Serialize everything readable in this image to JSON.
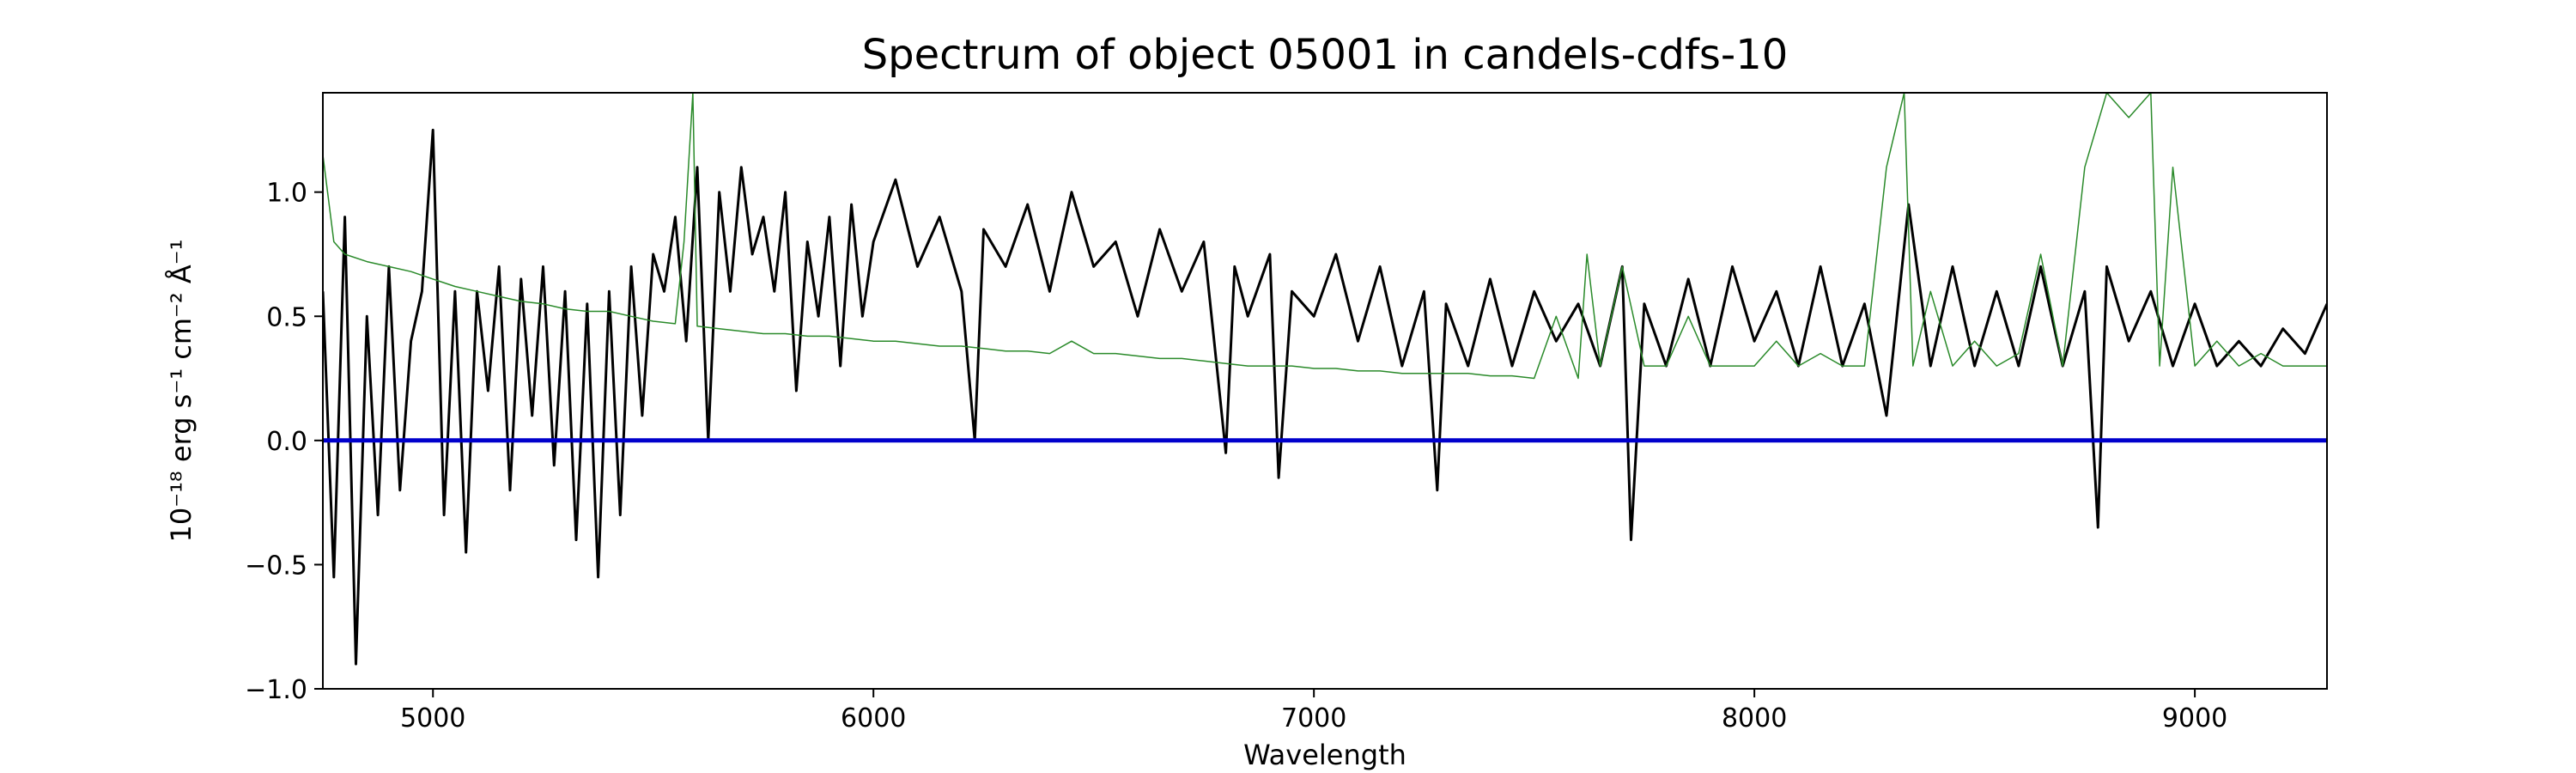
{
  "chart_data": {
    "type": "line",
    "title": "Spectrum of object 05001 in candels-cdfs-10",
    "xlabel": "Wavelength",
    "ylabel": "10⁻¹⁸ erg s⁻¹ cm⁻² Å⁻¹",
    "xlim": [
      4750,
      9300
    ],
    "ylim": [
      -1.0,
      1.4
    ],
    "x_ticks": [
      5000,
      6000,
      7000,
      8000,
      9000
    ],
    "y_ticks": [
      -1.0,
      -0.5,
      0.0,
      0.5,
      1.0
    ],
    "x_tick_labels": [
      "5000",
      "6000",
      "7000",
      "8000",
      "9000"
    ],
    "y_tick_labels": [
      "−1.0",
      "−0.5",
      "0.0",
      "0.5",
      "1.0"
    ],
    "grid": false,
    "series": [
      {
        "color": "#000000",
        "x": [
          4750,
          4775,
          4800,
          4825,
          4850,
          4875,
          4900,
          4925,
          4950,
          4975,
          5000,
          5025,
          5050,
          5075,
          5100,
          5125,
          5150,
          5175,
          5200,
          5225,
          5250,
          5275,
          5300,
          5325,
          5350,
          5375,
          5400,
          5425,
          5450,
          5475,
          5500,
          5525,
          5550,
          5575,
          5600,
          5625,
          5650,
          5675,
          5700,
          5725,
          5750,
          5775,
          5800,
          5825,
          5850,
          5875,
          5900,
          5925,
          5950,
          5975,
          6000,
          6050,
          6100,
          6150,
          6200,
          6230,
          6250,
          6300,
          6350,
          6400,
          6450,
          6500,
          6550,
          6600,
          6650,
          6700,
          6750,
          6800,
          6820,
          6850,
          6900,
          6920,
          6950,
          7000,
          7050,
          7100,
          7150,
          7200,
          7250,
          7280,
          7300,
          7350,
          7400,
          7450,
          7500,
          7550,
          7600,
          7650,
          7700,
          7720,
          7750,
          7800,
          7850,
          7900,
          7950,
          8000,
          8050,
          8100,
          8150,
          8200,
          8250,
          8300,
          8350,
          8400,
          8450,
          8500,
          8550,
          8600,
          8650,
          8700,
          8750,
          8780,
          8800,
          8850,
          8900,
          8950,
          9000,
          9050,
          9100,
          9150,
          9200,
          9250,
          9300
        ],
        "y": [
          0.6,
          -0.55,
          0.9,
          -0.9,
          0.5,
          -0.3,
          0.7,
          -0.2,
          0.4,
          0.6,
          1.25,
          -0.3,
          0.6,
          -0.45,
          0.6,
          0.2,
          0.7,
          -0.2,
          0.65,
          0.1,
          0.7,
          -0.1,
          0.6,
          -0.4,
          0.55,
          -0.55,
          0.6,
          -0.3,
          0.7,
          0.1,
          0.75,
          0.6,
          0.9,
          0.4,
          1.1,
          0.0,
          1.0,
          0.6,
          1.1,
          0.75,
          0.9,
          0.6,
          1.0,
          0.2,
          0.8,
          0.5,
          0.9,
          0.3,
          0.95,
          0.5,
          0.8,
          1.05,
          0.7,
          0.9,
          0.6,
          0.0,
          0.85,
          0.7,
          0.95,
          0.6,
          1.0,
          0.7,
          0.8,
          0.5,
          0.85,
          0.6,
          0.8,
          -0.05,
          0.7,
          0.5,
          0.75,
          -0.15,
          0.6,
          0.5,
          0.75,
          0.4,
          0.7,
          0.3,
          0.6,
          -0.2,
          0.55,
          0.3,
          0.65,
          0.3,
          0.6,
          0.4,
          0.55,
          0.3,
          0.7,
          -0.4,
          0.55,
          0.3,
          0.65,
          0.3,
          0.7,
          0.4,
          0.6,
          0.3,
          0.7,
          0.3,
          0.55,
          0.1,
          0.95,
          0.3,
          0.7,
          0.3,
          0.6,
          0.3,
          0.7,
          0.3,
          0.6,
          -0.35,
          0.7,
          0.4,
          0.6,
          0.3,
          0.55,
          0.3,
          0.4,
          0.3,
          0.45,
          0.35,
          0.55
        ]
      },
      {
        "color": "#2a8a2a",
        "x": [
          4750,
          4775,
          4800,
          4850,
          4900,
          4950,
          5000,
          5050,
          5100,
          5150,
          5200,
          5250,
          5300,
          5350,
          5400,
          5450,
          5500,
          5550,
          5570,
          5590,
          5600,
          5650,
          5700,
          5750,
          5800,
          5850,
          5900,
          5950,
          6000,
          6050,
          6100,
          6150,
          6200,
          6250,
          6300,
          6350,
          6400,
          6450,
          6500,
          6550,
          6600,
          6650,
          6700,
          6750,
          6800,
          6850,
          6900,
          6950,
          7000,
          7050,
          7100,
          7150,
          7200,
          7250,
          7300,
          7350,
          7400,
          7450,
          7500,
          7550,
          7600,
          7620,
          7650,
          7700,
          7750,
          7800,
          7850,
          7900,
          7950,
          8000,
          8050,
          8100,
          8150,
          8200,
          8250,
          8300,
          8340,
          8360,
          8400,
          8450,
          8500,
          8550,
          8600,
          8650,
          8700,
          8750,
          8800,
          8850,
          8900,
          8920,
          8950,
          9000,
          9050,
          9100,
          9150,
          9200,
          9250,
          9300
        ],
        "y": [
          1.15,
          0.8,
          0.75,
          0.72,
          0.7,
          0.68,
          0.65,
          0.62,
          0.6,
          0.58,
          0.56,
          0.55,
          0.53,
          0.52,
          0.52,
          0.5,
          0.48,
          0.47,
          0.8,
          1.4,
          0.46,
          0.45,
          0.44,
          0.43,
          0.43,
          0.42,
          0.42,
          0.41,
          0.4,
          0.4,
          0.39,
          0.38,
          0.38,
          0.37,
          0.36,
          0.36,
          0.35,
          0.4,
          0.35,
          0.35,
          0.34,
          0.33,
          0.33,
          0.32,
          0.31,
          0.3,
          0.3,
          0.3,
          0.29,
          0.29,
          0.28,
          0.28,
          0.27,
          0.27,
          0.27,
          0.27,
          0.26,
          0.26,
          0.25,
          0.5,
          0.25,
          0.75,
          0.3,
          0.7,
          0.3,
          0.3,
          0.5,
          0.3,
          0.3,
          0.3,
          0.4,
          0.3,
          0.35,
          0.3,
          0.3,
          1.1,
          1.4,
          0.3,
          0.6,
          0.3,
          0.4,
          0.3,
          0.35,
          0.75,
          0.3,
          1.1,
          1.4,
          1.3,
          1.4,
          0.3,
          1.1,
          0.3,
          0.4,
          0.3,
          0.35,
          0.3,
          0.3,
          0.3
        ]
      },
      {
        "color": "#0000cc",
        "x": [
          4750,
          9300
        ],
        "y": [
          0.0,
          0.0
        ]
      }
    ]
  }
}
